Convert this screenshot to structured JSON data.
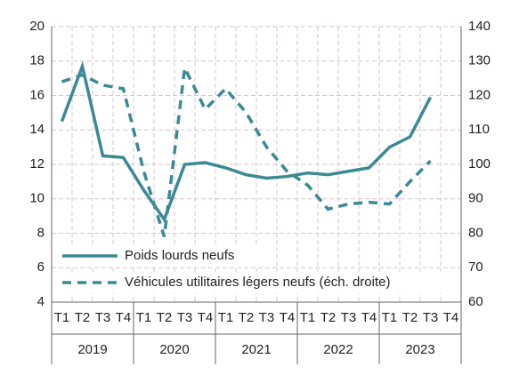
{
  "chart_data": {
    "type": "line",
    "categories": [
      "T1",
      "T2",
      "T3",
      "T4",
      "T1",
      "T2",
      "T3",
      "T4",
      "T1",
      "T2",
      "T3",
      "T4",
      "T1",
      "T2",
      "T3",
      "T4",
      "T1",
      "T2",
      "T3",
      "T4"
    ],
    "x_groups": [
      "2019",
      "2020",
      "2021",
      "2022",
      "2023"
    ],
    "series": [
      {
        "name": "Poids lourds neufs",
        "color": "#3a8a96",
        "dash": false,
        "values": [
          14.5,
          17.7,
          12.5,
          12.4,
          10.5,
          8.8,
          12.0,
          12.1,
          11.8,
          11.4,
          11.2,
          11.3,
          11.5,
          11.4,
          11.6,
          11.8,
          13.0,
          13.6,
          15.9,
          null
        ]
      },
      {
        "name": "Véhicules utilitaires légers neufs (éch. droite)",
        "color": "#3a8a96",
        "dash": true,
        "axis": "y2",
        "values": [
          124,
          126,
          123,
          122,
          98,
          79,
          128,
          116,
          122,
          115,
          105,
          98,
          94,
          87,
          88.5,
          89,
          88.5,
          95,
          101,
          null
        ]
      }
    ],
    "ylim": [
      4,
      20
    ],
    "yticks": [
      4,
      6,
      8,
      10,
      12,
      14,
      16,
      18,
      20
    ],
    "y2lim": [
      60,
      140
    ],
    "y2ticks": [
      60,
      70,
      80,
      90,
      100,
      110,
      120,
      130,
      140
    ],
    "grid": true
  }
}
